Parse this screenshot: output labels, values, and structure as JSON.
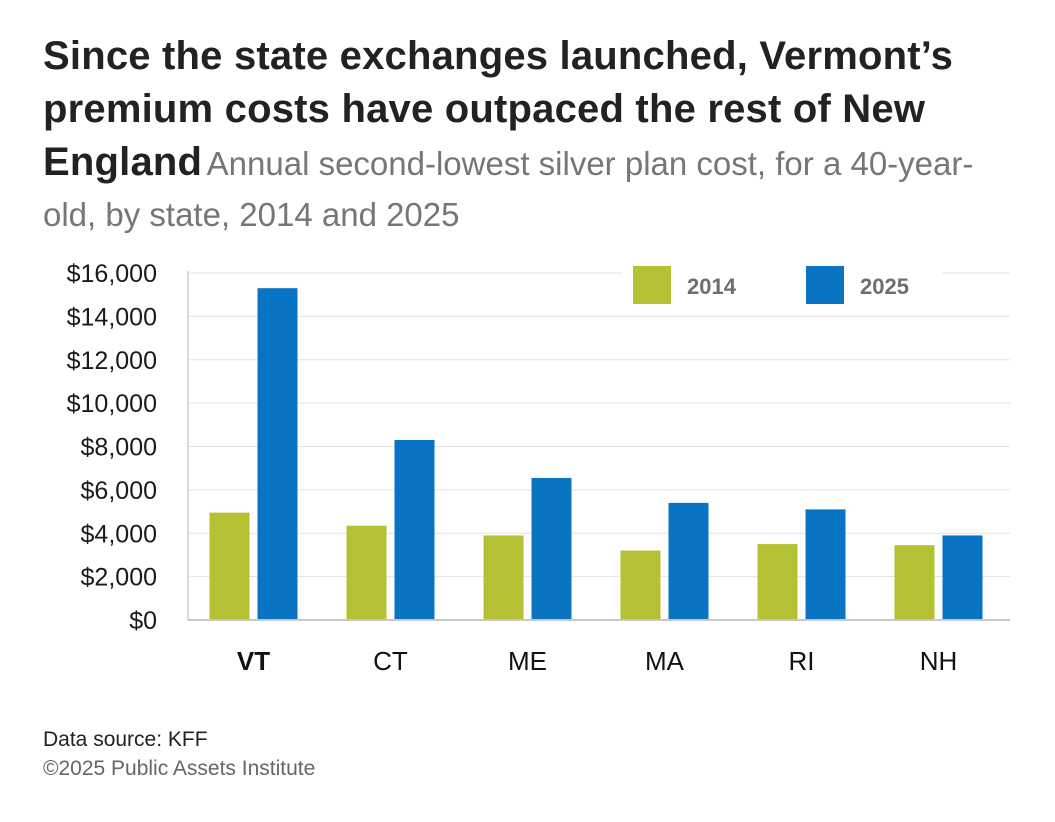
{
  "heading": {
    "title": "Since the state exchanges launched, Vermont’s premium costs have outpaced the rest of New England",
    "subtitle": "Annual second-lowest silver plan cost, for a 40-year-old, by state, 2014 and 2025"
  },
  "chart_data": {
    "type": "bar",
    "categories": [
      "VT",
      "CT",
      "ME",
      "MA",
      "RI",
      "NH"
    ],
    "highlight_category": "VT",
    "series": [
      {
        "name": "2014",
        "color": "#b5c032",
        "values": [
          4950,
          4350,
          3900,
          3200,
          3500,
          3450
        ]
      },
      {
        "name": "2025",
        "color": "#0a74c4",
        "values": [
          15300,
          8300,
          6550,
          5400,
          5100,
          3900
        ]
      }
    ],
    "ylim": [
      0,
      16000
    ],
    "yticks": [
      "$0",
      "$2,000",
      "$4,000",
      "$6,000",
      "$8,000",
      "$10,000",
      "$12,000",
      "$14,000",
      "$16,000"
    ],
    "grid": true,
    "legend_position": "top-right"
  },
  "footer": {
    "source": "Data source: KFF",
    "copyright": "©2025 Public Assets Institute"
  }
}
